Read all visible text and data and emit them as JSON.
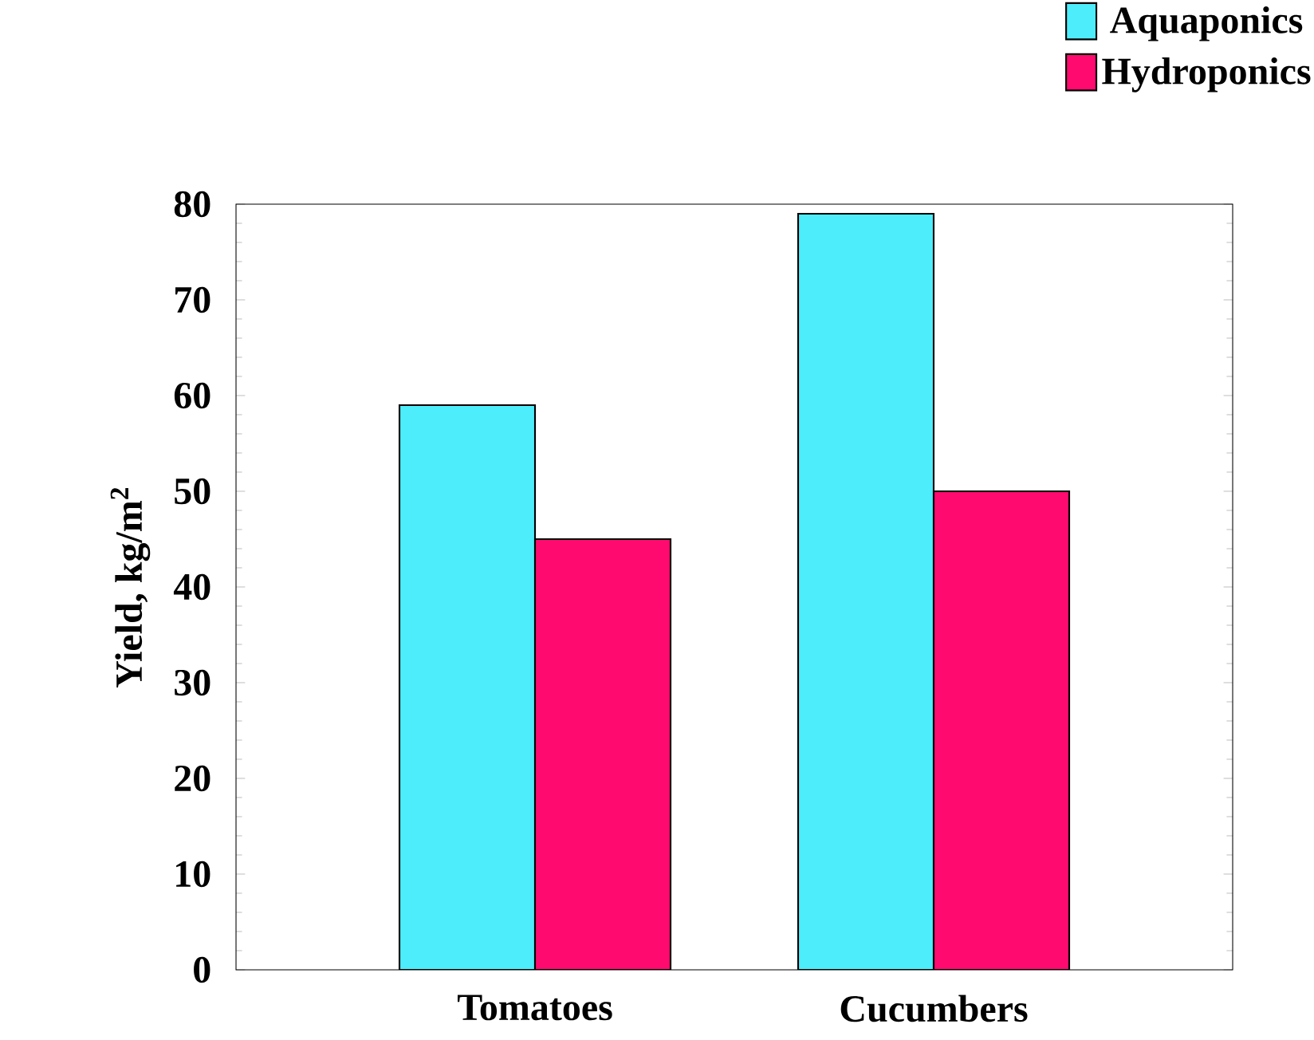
{
  "chart_data": {
    "type": "bar",
    "ylabel": "Yield, kg/m$^{2}$",
    "categories": [
      "Tomatoes",
      "Cucumbers"
    ],
    "series": [
      {
        "name": "Aquaponics",
        "color": "#4dedfb",
        "values": [
          59,
          79
        ]
      },
      {
        "name": "Hydroponics",
        "color": "#ff0a6e",
        "values": [
          45,
          50
        ]
      }
    ],
    "ylim": [
      0,
      80
    ],
    "yticks": [
      0,
      10,
      20,
      30,
      40,
      50,
      60,
      70,
      80
    ],
    "legend": "top right",
    "grid": false
  }
}
